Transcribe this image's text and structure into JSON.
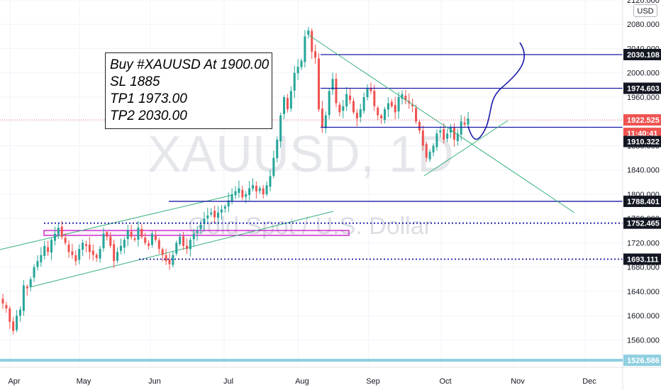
{
  "symbol": "XAUUSD",
  "interval": "1D",
  "watermark_symbol": "XAUUSD, 1D",
  "watermark_name": "Gold Spot / U.S. Dollar",
  "currency_badge": "USD",
  "note": {
    "lines": [
      "Buy #XAUUSD At 1900.00",
      "SL 1885",
      "TP1 1973.00",
      "TP2 2030.00"
    ]
  },
  "colors": {
    "up": "#26a69a",
    "down": "#ef5350",
    "level_line": "#1a1aa6",
    "trend_line": "#35b07a",
    "projection": "#1a1aa6",
    "zone": "#c000c0",
    "price_tag_bg": "#131722"
  },
  "chart_data": {
    "type": "candlestick",
    "title": "",
    "ylim": [
      1515,
      2120
    ],
    "y_ticks": [
      "2120.000",
      "2080.000",
      "2040.000",
      "2000.000",
      "1960.000",
      "1920.000",
      "1880.000",
      "1840.000",
      "1800.000",
      "1760.000",
      "1720.000",
      "1680.000",
      "1640.000",
      "1600.000",
      "1560.000",
      "1526.586"
    ],
    "x_ticks": [
      "Apr",
      "May",
      "Jun",
      "Jul",
      "Aug",
      "Sep",
      "Oct",
      "Nov",
      "Dec"
    ],
    "current_price": "1922.525",
    "countdown": "11:40:41",
    "price_labels": [
      {
        "value": 2030.108,
        "text": "2030.108",
        "style": "solid"
      },
      {
        "value": 1974.603,
        "text": "1974.603",
        "style": "solid"
      },
      {
        "value": 1910.322,
        "text": "1910.322",
        "style": "solid"
      },
      {
        "value": 1788.401,
        "text": "1788.401",
        "style": "solid"
      },
      {
        "value": 1752.465,
        "text": "1752.465",
        "style": "dotted"
      },
      {
        "value": 1693.111,
        "text": "1693.111",
        "style": "dotted"
      }
    ],
    "bottom_level": {
      "value": 1526.586,
      "text": "1526.586"
    },
    "series_daily_close_approx": [
      1620,
      1612,
      1590,
      1575,
      1600,
      1610,
      1650,
      1645,
      1660,
      1680,
      1690,
      1700,
      1715,
      1705,
      1725,
      1735,
      1745,
      1730,
      1720,
      1705,
      1700,
      1690,
      1710,
      1720,
      1715,
      1705,
      1700,
      1695,
      1710,
      1735,
      1730,
      1715,
      1690,
      1705,
      1715,
      1725,
      1740,
      1730,
      1725,
      1745,
      1730,
      1720,
      1715,
      1735,
      1725,
      1710,
      1700,
      1690,
      1685,
      1700,
      1720,
      1730,
      1715,
      1710,
      1725,
      1735,
      1740,
      1750,
      1760,
      1765,
      1770,
      1762,
      1770,
      1775,
      1780,
      1790,
      1800,
      1805,
      1810,
      1795,
      1800,
      1810,
      1815,
      1805,
      1810,
      1800,
      1815,
      1830,
      1860,
      1890,
      1930,
      1960,
      1940,
      1970,
      2000,
      2010,
      2020,
      2060,
      2070,
      2035,
      2025,
      1940,
      1910,
      1930,
      1970,
      1990,
      1950,
      1935,
      1945,
      1965,
      1955,
      1935,
      1925,
      1940,
      1960,
      1975,
      1970,
      1945,
      1930,
      1925,
      1940,
      1950,
      1945,
      1935,
      1960,
      1965,
      1955,
      1950,
      1945,
      1920,
      1905,
      1880,
      1860,
      1870,
      1880,
      1900,
      1905,
      1890,
      1900,
      1910,
      1890,
      1900,
      1920,
      1915,
      1925
    ]
  }
}
